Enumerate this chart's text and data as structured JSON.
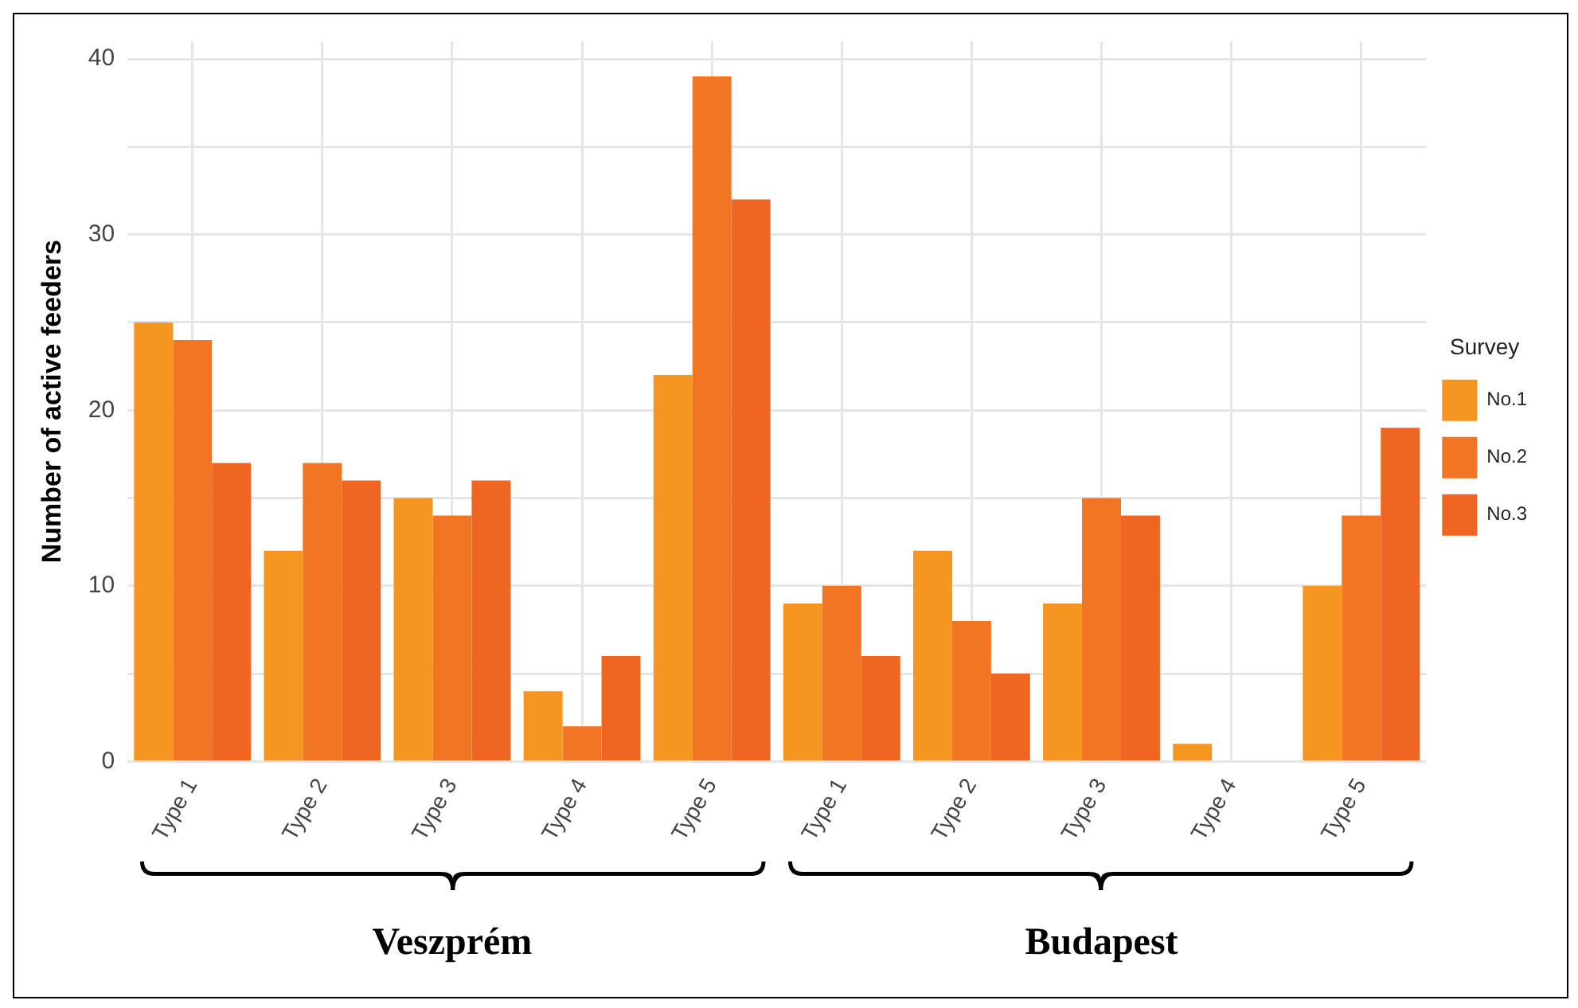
{
  "chart_data": {
    "type": "bar",
    "ylabel": "Number of active feeders",
    "legend_title": "Survey",
    "legend": "right",
    "grid": true,
    "categories": [
      "Type 1",
      "Type 2",
      "Type 3",
      "Type 4",
      "Type 5",
      "Type 1",
      "Type 2",
      "Type 3",
      "Type 4",
      "Type 5"
    ],
    "ylim": [
      0,
      41
    ],
    "yticks": [
      0,
      {
        "value": 5,
        "label": null
      },
      10,
      {
        "value": 15,
        "label": null
      },
      20,
      {
        "value": 25,
        "label": null
      },
      30,
      {
        "value": 35,
        "label": null
      },
      40
    ],
    "series": [
      {
        "name": "No.1",
        "color": "#f59622",
        "values": [
          25,
          12,
          15,
          4,
          22,
          9,
          12,
          9,
          1,
          10
        ]
      },
      {
        "name": "No.2",
        "color": "#f17522",
        "values": [
          24,
          17,
          14,
          2,
          39,
          10,
          8,
          15,
          0,
          14
        ]
      },
      {
        "name": "No.3",
        "color": "#ee6622",
        "values": [
          17,
          16,
          16,
          6,
          32,
          6,
          5,
          14,
          0,
          19
        ]
      }
    ],
    "annotations": [
      "Veszprém",
      "Budapest"
    ]
  }
}
